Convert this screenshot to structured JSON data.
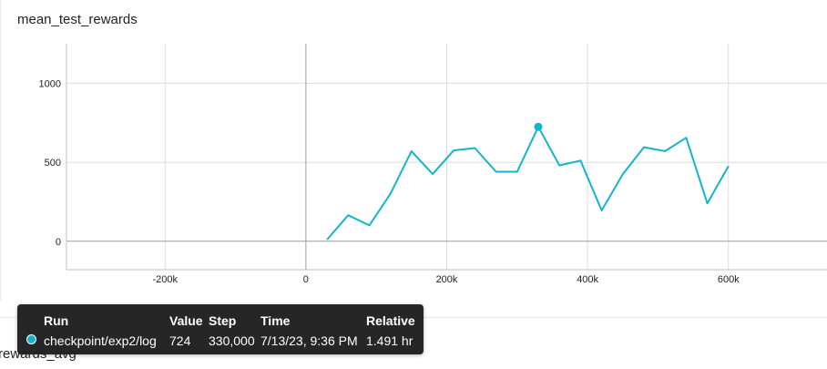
{
  "card": {
    "title": "mean_test_rewards"
  },
  "chart_data": {
    "type": "line",
    "title": "mean_test_rewards",
    "xlabel": "",
    "ylabel": "",
    "xlim": [
      -340000,
      740000
    ],
    "ylim": [
      -180000,
      1000000
    ],
    "ylim_values": [
      -180,
      1250
    ],
    "x_ticks": [
      -200000,
      0,
      200000,
      400000,
      600000
    ],
    "x_tick_labels": [
      "-200k",
      "0",
      "200k",
      "400k",
      "600k"
    ],
    "y_ticks": [
      0,
      500,
      1000
    ],
    "y_tick_labels": [
      "0",
      "500",
      "1000"
    ],
    "grid": true,
    "series": [
      {
        "name": "checkpoint/exp2/log",
        "color": "#12b5cb",
        "x": [
          30000,
          60000,
          90000,
          120000,
          150000,
          180000,
          210000,
          240000,
          270000,
          300000,
          330000,
          360000,
          390000,
          420000,
          450000,
          480000,
          510000,
          540000,
          570000,
          600000
        ],
        "y": [
          10,
          165,
          100,
          300,
          570,
          425,
          575,
          590,
          440,
          440,
          724,
          480,
          510,
          195,
          425,
          595,
          570,
          655,
          240,
          475
        ]
      }
    ],
    "highlight": {
      "x": 330000,
      "y": 724
    }
  },
  "tooltip": {
    "headers": {
      "run": "Run",
      "value": "Value",
      "step": "Step",
      "time": "Time",
      "relative": "Relative"
    },
    "row": {
      "run": "checkpoint/exp2/log",
      "value": "724",
      "step": "330,000",
      "time": "7/13/23, 9:36 PM",
      "relative": "1.491 hr",
      "color": "#12b5cb"
    }
  },
  "next_card": {
    "title": "rewards_avg"
  }
}
